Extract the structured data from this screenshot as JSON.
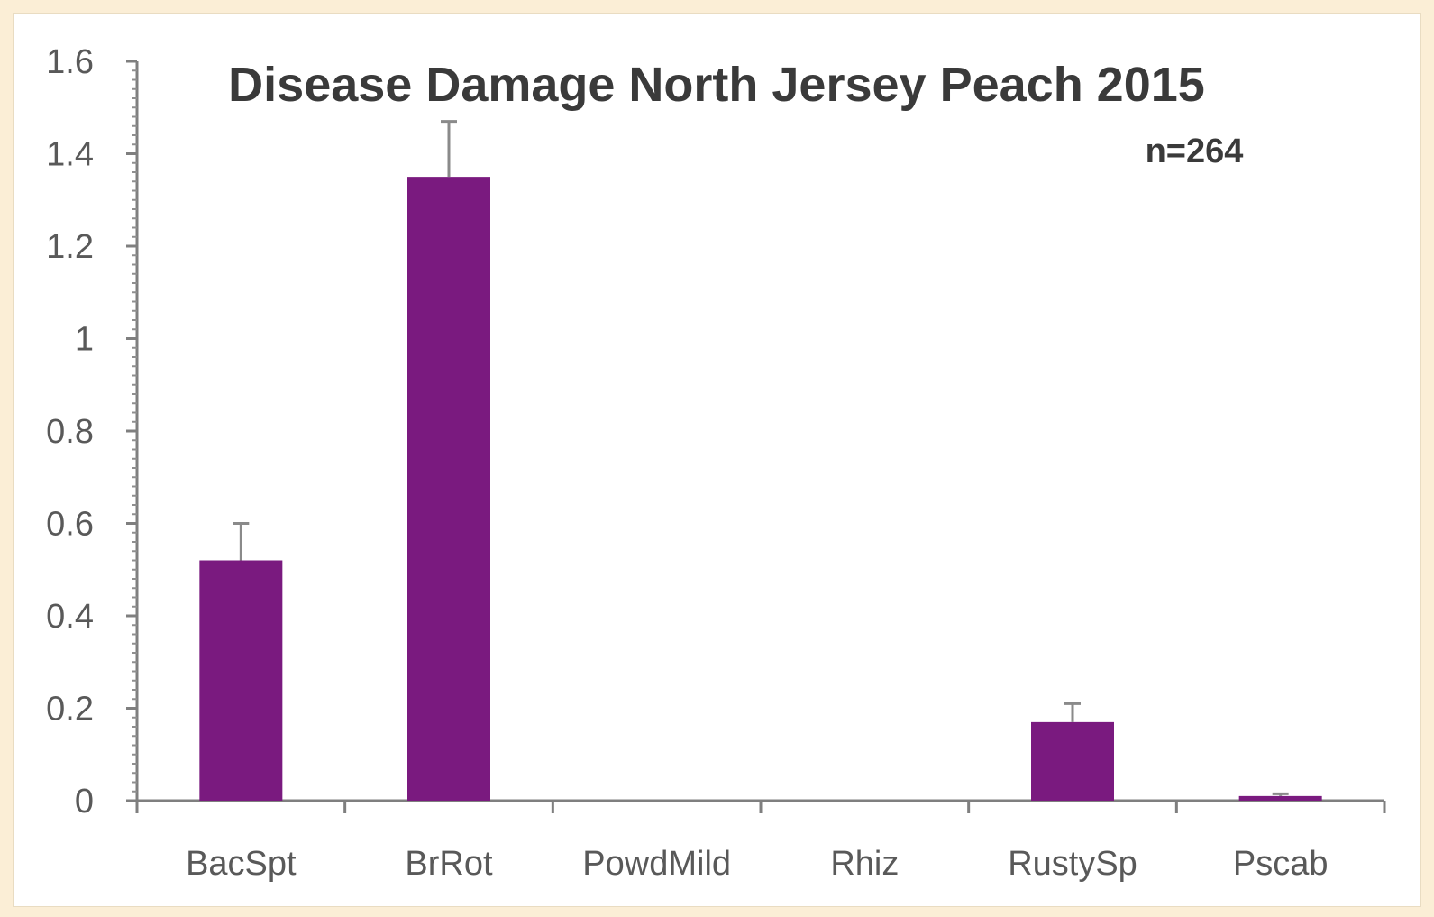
{
  "chart_data": {
    "type": "bar",
    "title": "Disease Damage North Jersey Peach 2015",
    "annotation": "n=264",
    "categories": [
      "BacSpt",
      "BrRot",
      "PowdMild",
      "Rhiz",
      "RustySp",
      "Pscab"
    ],
    "values": [
      0.52,
      1.35,
      0,
      0,
      0.17,
      0.01
    ],
    "error_upper": [
      0.6,
      1.47,
      0,
      0,
      0.21,
      0.015
    ],
    "yticks": [
      "0",
      "0.2",
      "0.4",
      "0.6",
      "0.8",
      "1",
      "1.2",
      "1.4",
      "1.6"
    ],
    "ylim": [
      0,
      1.6
    ],
    "xlabel": "",
    "ylabel": "",
    "bar_color": "#7a1a7f",
    "grid": false,
    "legend": "none"
  }
}
